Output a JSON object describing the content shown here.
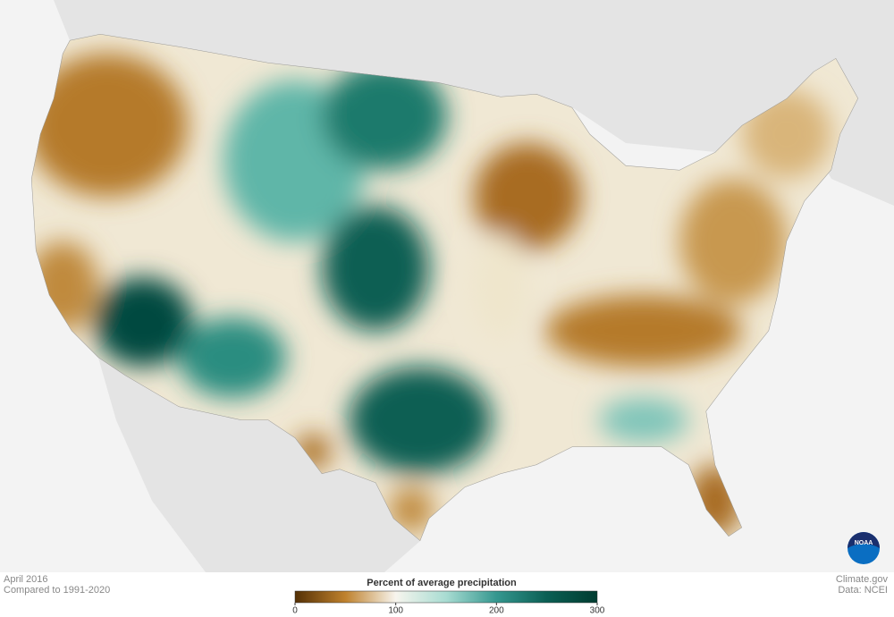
{
  "footer": {
    "period": "April 2016",
    "baseline": "Compared to 1991-2020",
    "source": "Climate.gov",
    "data_credit": "Data: NCEI",
    "logo": "NOAA"
  },
  "legend": {
    "title": "Percent of average precipitation",
    "range": [
      0,
      300
    ],
    "ticks": [
      0,
      100,
      200,
      300
    ],
    "colors": [
      "#543005",
      "#bf812d",
      "#f7f5ee",
      "#a8dcd2",
      "#35978f",
      "#0b5f54",
      "#003c30"
    ]
  }
}
